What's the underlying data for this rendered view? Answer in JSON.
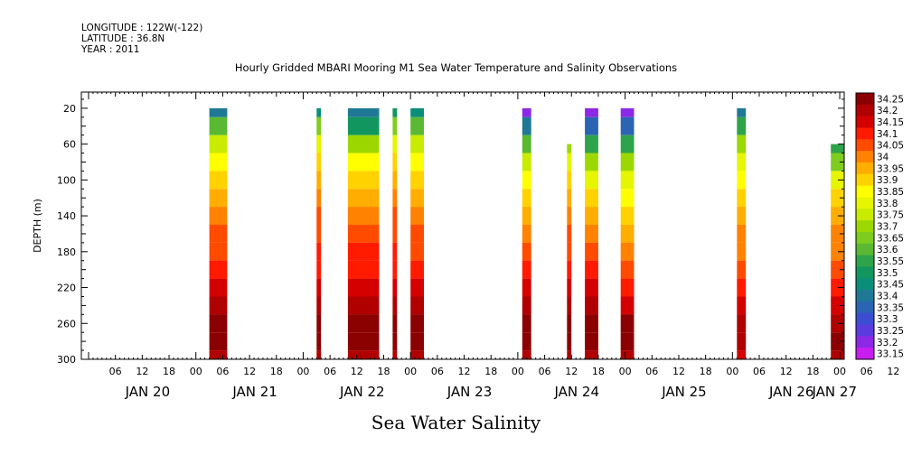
{
  "header": {
    "longitude": "LONGITUDE : 122W(-122)",
    "latitude": "LATITUDE : 36.8N",
    "year": "YEAR : 2011"
  },
  "chart_data": {
    "type": "heatmap",
    "title": "Hourly Gridded MBARI Mooring M1 Sea Water Temperature and Salinity Observations",
    "xlabel": "Sea Water Salinity",
    "ylabel": "DEPTH (m)",
    "y_ticks": [
      20,
      60,
      100,
      140,
      180,
      220,
      260,
      300
    ],
    "ylim": [
      300,
      2
    ],
    "x_hour_ticks": [
      "06",
      "12",
      "18",
      "00",
      "06",
      "12",
      "18",
      "00",
      "06",
      "12",
      "18",
      "00",
      "06",
      "12",
      "18",
      "00",
      "06",
      "12",
      "18",
      "00",
      "06",
      "12",
      "18",
      "00",
      "06",
      "12",
      "18",
      "00",
      "06",
      "12",
      "18",
      "00"
    ],
    "x_day_labels": [
      "JAN 20",
      "JAN 21",
      "JAN 22",
      "JAN 23",
      "JAN 24",
      "JAN 25",
      "JAN 26",
      "JAN 27"
    ],
    "x_range_hours": [
      0,
      169
    ],
    "colorbar": {
      "levels": [
        "34.25",
        "34.2",
        "34.15",
        "34.1",
        "34.05",
        "34",
        "33.95",
        "33.9",
        "33.85",
        "33.8",
        "33.75",
        "33.7",
        "33.65",
        "33.6",
        "33.55",
        "33.5",
        "33.45",
        "33.4",
        "33.35",
        "33.3",
        "33.25",
        "33.2",
        "33.15"
      ],
      "colors": [
        "#8b0000",
        "#b00000",
        "#d40000",
        "#ff1a00",
        "#ff4b00",
        "#ff8200",
        "#ffae00",
        "#ffd200",
        "#ffff00",
        "#e6f500",
        "#c8eb00",
        "#9cd800",
        "#7dcc1e",
        "#5ab832",
        "#2ea44a",
        "#10965e",
        "#0a8e7a",
        "#1f7896",
        "#2b64b4",
        "#3b4ed2",
        "#5a3cde",
        "#8c28e6",
        "#c81ef0"
      ]
    },
    "profile_depths": [
      20,
      40,
      60,
      80,
      100,
      120,
      140,
      160,
      180,
      200,
      220,
      240,
      260,
      280,
      300
    ],
    "series": [
      {
        "start_hour": 27,
        "end_hour": 31,
        "top_depth": 20,
        "values": [
          33.4,
          33.6,
          33.75,
          33.85,
          33.9,
          33.95,
          34.0,
          34.05,
          34.05,
          34.1,
          34.15,
          34.2,
          34.25,
          34.25,
          34.2
        ]
      },
      {
        "start_hour": 51,
        "end_hour": 52,
        "top_depth": 20,
        "values": [
          33.45,
          33.65,
          33.8,
          33.9,
          33.95,
          34.0,
          34.05,
          34.05,
          34.1,
          34.1,
          34.15,
          34.2,
          34.25,
          34.25,
          34.2
        ]
      },
      {
        "start_hour": 58,
        "end_hour": 65,
        "top_depth": 20,
        "values": [
          33.4,
          33.5,
          33.7,
          33.85,
          33.9,
          33.95,
          34.0,
          34.05,
          34.1,
          34.1,
          34.15,
          34.2,
          34.25,
          34.25,
          34.2
        ]
      },
      {
        "start_hour": 68,
        "end_hour": 69,
        "top_depth": 20,
        "values": [
          33.5,
          33.65,
          33.8,
          33.9,
          33.95,
          34.0,
          34.05,
          34.05,
          34.1,
          34.1,
          34.15,
          34.2,
          34.25,
          34.25,
          34.2
        ]
      },
      {
        "start_hour": 72,
        "end_hour": 75,
        "top_depth": 20,
        "values": [
          33.45,
          33.6,
          33.75,
          33.85,
          33.9,
          33.95,
          34.0,
          34.05,
          34.05,
          34.1,
          34.15,
          34.2,
          34.25,
          34.25,
          34.2
        ]
      },
      {
        "start_hour": 97,
        "end_hour": 99,
        "top_depth": 20,
        "values": [
          33.2,
          33.4,
          33.6,
          33.75,
          33.85,
          33.9,
          33.95,
          34.0,
          34.05,
          34.1,
          34.15,
          34.2,
          34.25,
          34.25,
          34.2
        ]
      },
      {
        "start_hour": 107,
        "end_hour": 108,
        "top_depth": 60,
        "values": [
          33.6,
          33.6,
          33.7,
          33.8,
          33.9,
          33.95,
          34.0,
          34.05,
          34.05,
          34.1,
          34.15,
          34.2,
          34.25,
          34.25,
          34.2
        ]
      },
      {
        "start_hour": 111,
        "end_hour": 114,
        "top_depth": 20,
        "values": [
          33.2,
          33.35,
          33.55,
          33.7,
          33.8,
          33.9,
          33.95,
          34.0,
          34.05,
          34.1,
          34.15,
          34.2,
          34.25,
          34.25,
          34.2
        ]
      },
      {
        "start_hour": 119,
        "end_hour": 122,
        "top_depth": 20,
        "values": [
          33.2,
          33.35,
          33.55,
          33.7,
          33.8,
          33.85,
          33.9,
          33.95,
          34.0,
          34.05,
          34.1,
          34.15,
          34.25,
          34.25,
          34.2
        ]
      },
      {
        "start_hour": 145,
        "end_hour": 147,
        "top_depth": 20,
        "values": [
          33.4,
          33.55,
          33.7,
          33.8,
          33.85,
          33.9,
          33.95,
          34.0,
          34.0,
          34.05,
          34.1,
          34.15,
          34.2,
          34.2,
          34.15
        ]
      },
      {
        "start_hour": 166,
        "end_hour": 169,
        "top_depth": 60,
        "values": [
          33.5,
          33.5,
          33.55,
          33.65,
          33.8,
          33.9,
          33.95,
          34.0,
          34.0,
          34.05,
          34.1,
          34.15,
          34.2,
          34.25,
          34.2
        ]
      }
    ]
  }
}
